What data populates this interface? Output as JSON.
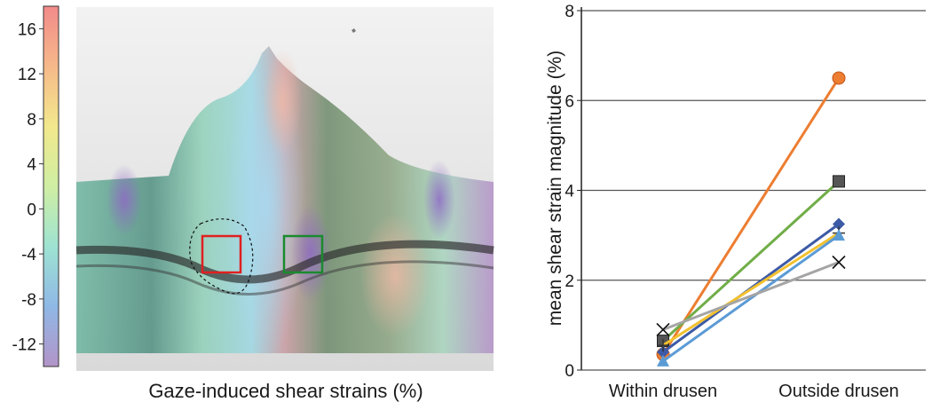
{
  "left_panel": {
    "caption": "Gaze-induced shear strains (%)",
    "colorbar": {
      "ticks": [
        "16",
        "12",
        "8",
        "4",
        "0",
        "-4",
        "-8",
        "-12"
      ],
      "tick_values": [
        16,
        12,
        8,
        4,
        0,
        -4,
        -8,
        -12
      ],
      "range": [
        -14,
        18
      ],
      "colors": [
        "#b394c8",
        "#8fb8e6",
        "#9ee3d2",
        "#cfeea3",
        "#f2e88c",
        "#f6b98a",
        "#f28a8a"
      ]
    },
    "roi_within_color": "#e02020",
    "roi_outside_color": "#1a8a2e"
  },
  "chart_data": {
    "type": "line",
    "title": "",
    "xlabel": "",
    "ylabel": "mean shear strain magnitude (%)",
    "categories": [
      "Within drusen",
      "Outside drusen"
    ],
    "ylim": [
      0,
      8
    ],
    "yticks": [
      0,
      2,
      4,
      6,
      8
    ],
    "yticks_text": [
      "0",
      "2",
      "4",
      "6",
      "8"
    ],
    "grid": true,
    "series": [
      {
        "values": [
          0.35,
          6.5
        ],
        "color": "#ed7d31",
        "marker": "circle"
      },
      {
        "values": [
          0.65,
          4.2
        ],
        "color": "#70ad47",
        "marker": "square"
      },
      {
        "values": [
          0.4,
          3.25
        ],
        "color": "#3c5aa6",
        "marker": "diamond"
      },
      {
        "values": [
          0.55,
          3.05
        ],
        "color": "#f2c12e",
        "marker": "plus"
      },
      {
        "values": [
          0.2,
          3.0
        ],
        "color": "#5b9bd5",
        "marker": "triangle"
      },
      {
        "values": [
          0.9,
          2.4
        ],
        "color": "#a5a5a5",
        "marker": "x"
      }
    ]
  }
}
